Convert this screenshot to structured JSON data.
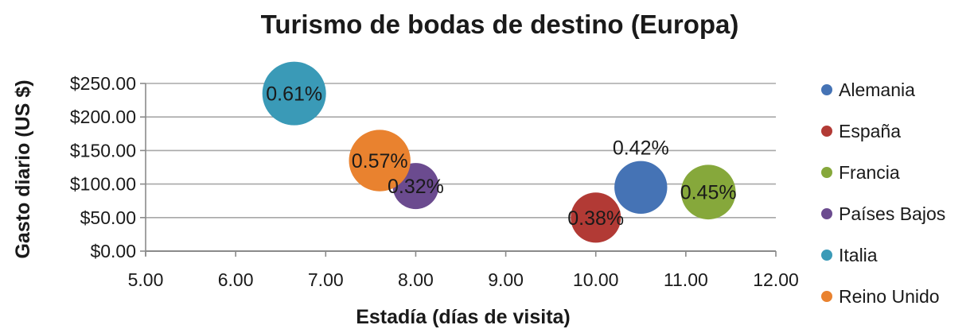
{
  "chart_data": {
    "type": "bubble",
    "title": "Turismo de bodas de destino (Europa)",
    "xlabel": "Estadía (días de visita)",
    "ylabel": "Gasto diario (US $)",
    "xlim": [
      5,
      12
    ],
    "ylim": [
      0,
      250
    ],
    "x_ticks": [
      "5.00",
      "6.00",
      "7.00",
      "8.00",
      "9.00",
      "10.00",
      "11.00",
      "12.00"
    ],
    "y_ticks": [
      "$0.00",
      "$50.00",
      "$100.00",
      "$150.00",
      "$200.00",
      "$250.00"
    ],
    "grid": true,
    "legend_position": "right",
    "series": [
      {
        "name": "Alemania",
        "x": 10.5,
        "y": 95,
        "size": 0.42,
        "label": "0.42%",
        "color": "#4573b5"
      },
      {
        "name": "España",
        "x": 10.0,
        "y": 50,
        "size": 0.38,
        "label": "0.38%",
        "color": "#b23a35"
      },
      {
        "name": "Francia",
        "x": 11.25,
        "y": 88,
        "size": 0.45,
        "label": "0.45%",
        "color": "#86a83b"
      },
      {
        "name": "Países Bajos",
        "x": 8.0,
        "y": 97,
        "size": 0.32,
        "label": "0.32%",
        "color": "#6b4b8f"
      },
      {
        "name": "Italia",
        "x": 6.65,
        "y": 235,
        "size": 0.61,
        "label": "0.61%",
        "color": "#3a9ab7"
      },
      {
        "name": "Reino Unido",
        "x": 7.6,
        "y": 135,
        "size": 0.57,
        "label": "0.57%",
        "color": "#e9822f"
      }
    ]
  }
}
